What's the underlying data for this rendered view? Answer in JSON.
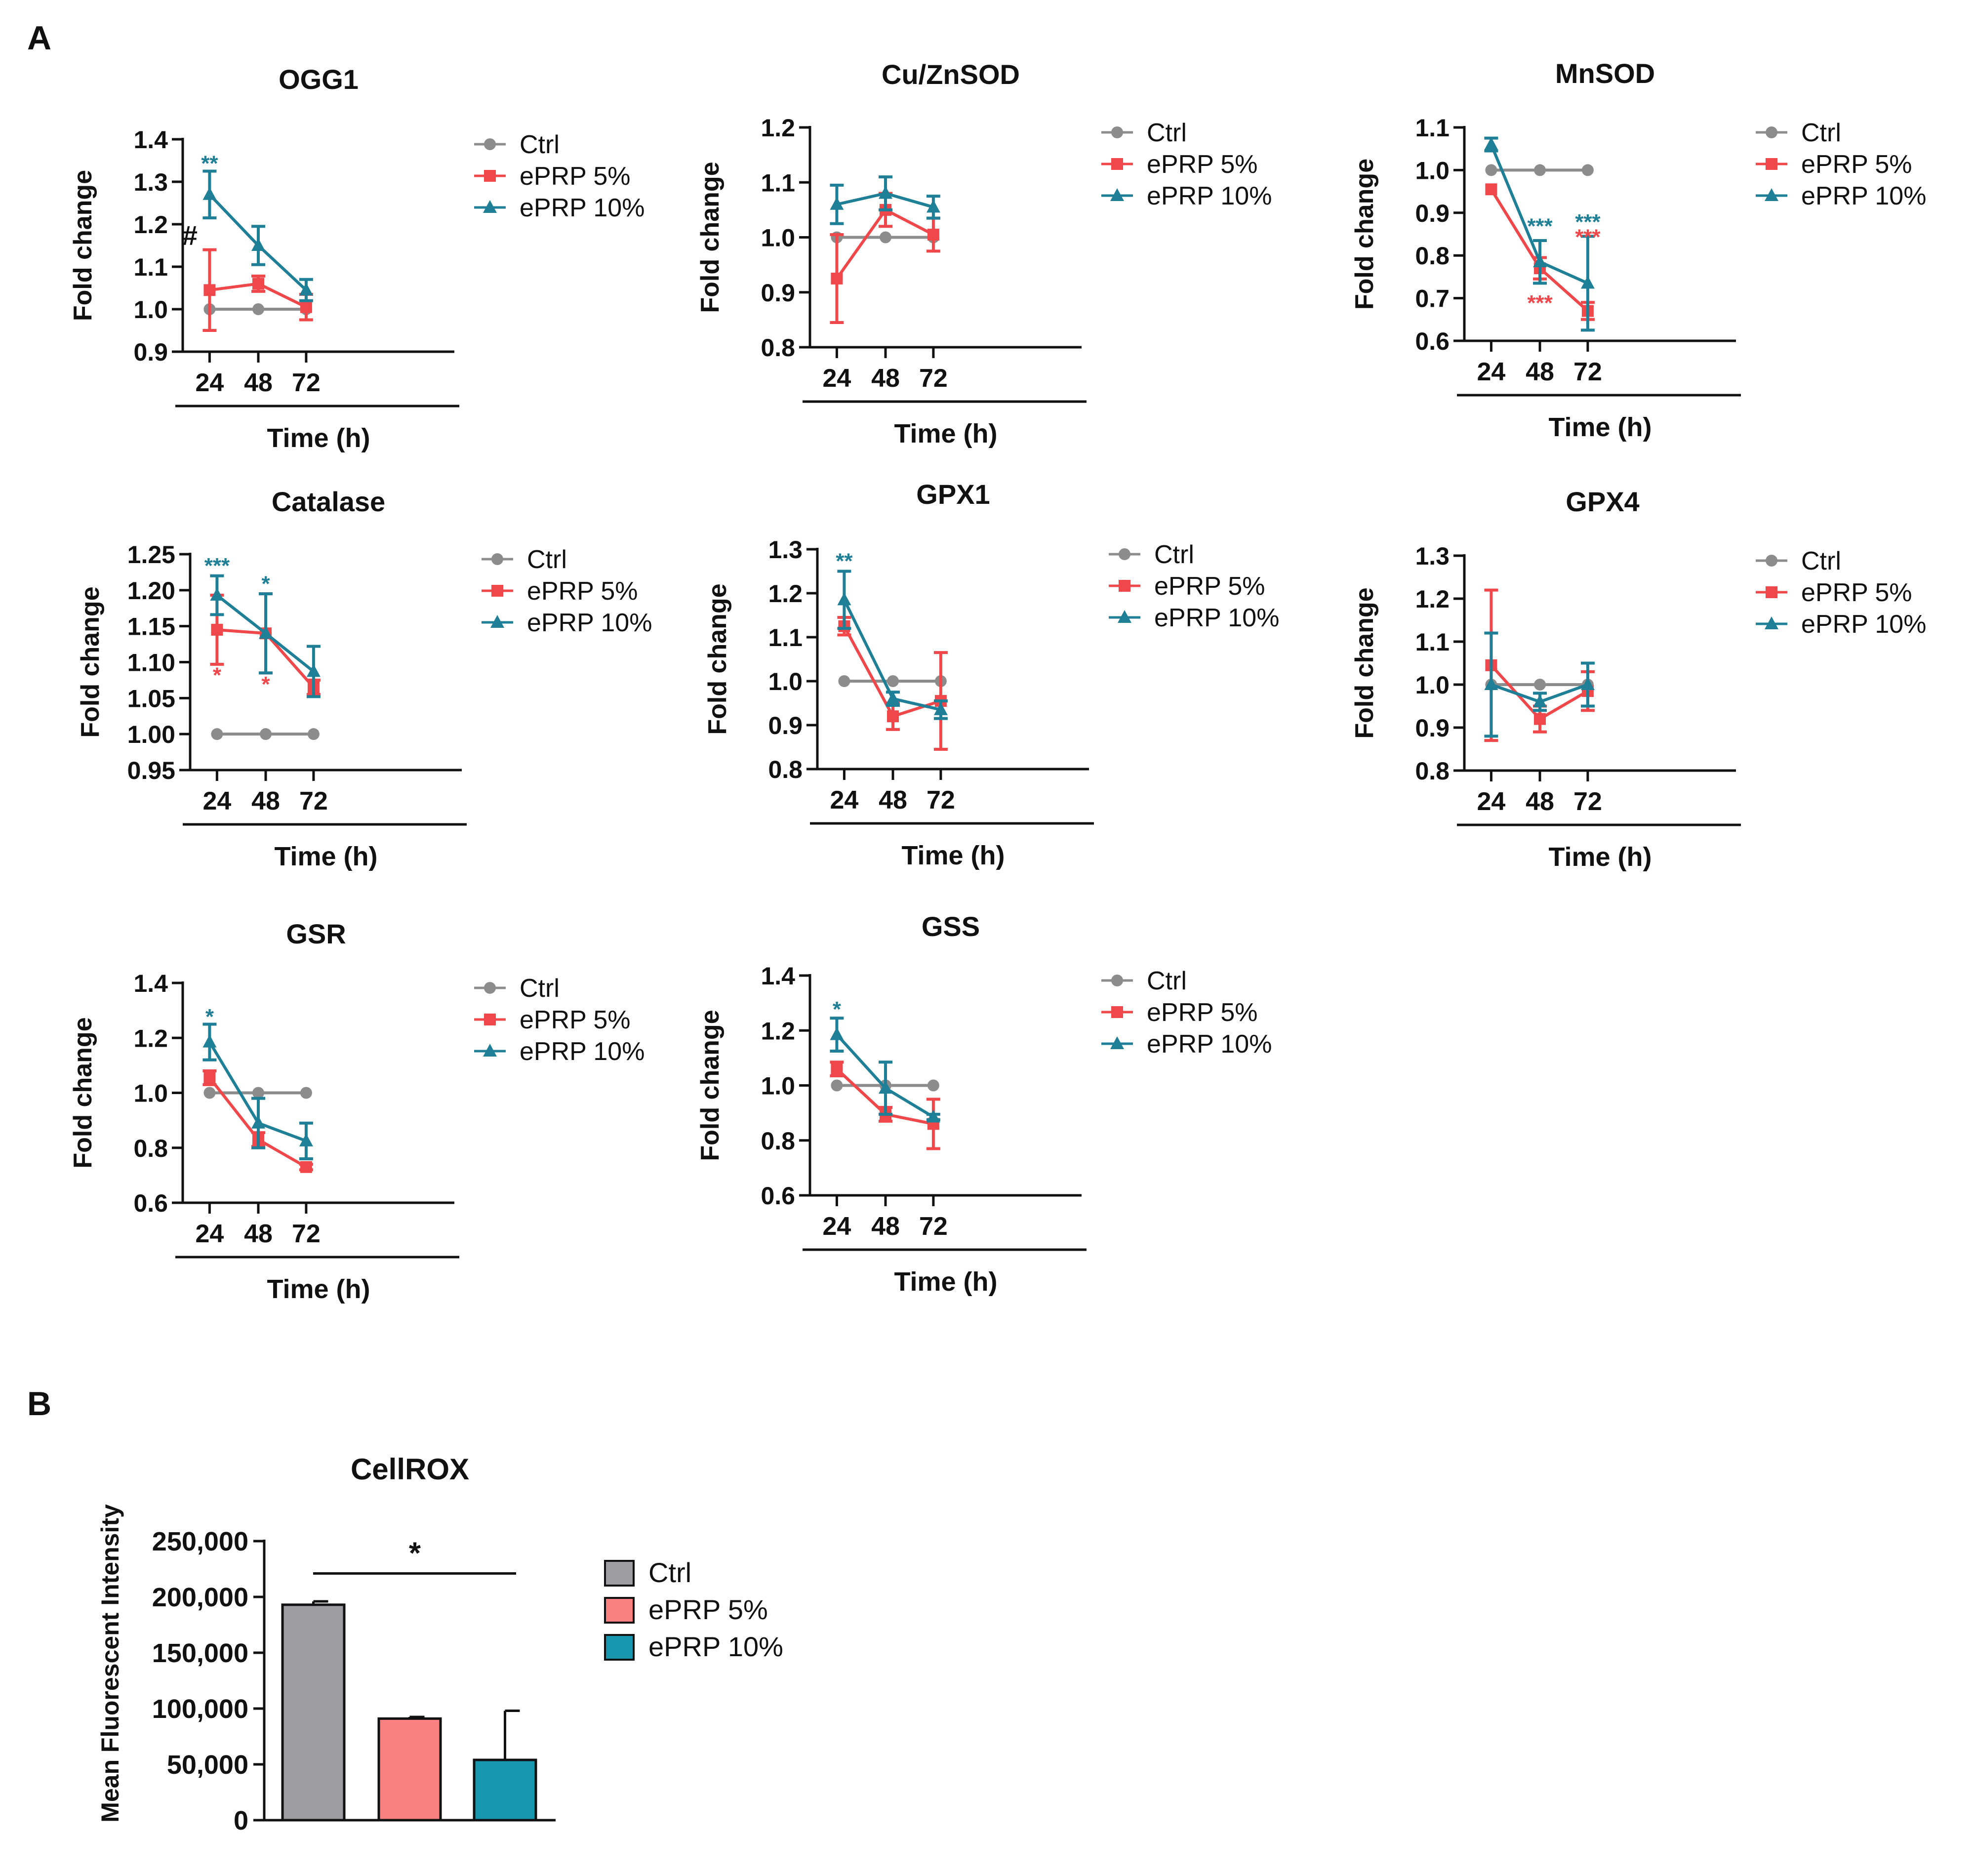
{
  "panels": {
    "a": "A",
    "b": "B"
  },
  "colors": {
    "ctrl": "#8c8c8c",
    "eprp5": "#f0474a",
    "eprp10": "#1e7f96",
    "black": "#111111",
    "bar_ctrl": "#9d9da1",
    "bar_eprp5": "#fa8181",
    "bar_eprp10": "#1797ad"
  },
  "chart_data": [
    {
      "type": "line",
      "title": "OGG1",
      "xlabel": "Time (h)",
      "ylabel": "Fold change",
      "categories": [
        "24",
        "48",
        "72"
      ],
      "ylim": [
        0.9,
        1.4
      ],
      "yticks": [
        0.9,
        1.0,
        1.1,
        1.2,
        1.3,
        1.4
      ],
      "ytick_labels": [
        "0.9",
        "1.0",
        "1.1",
        "1.2",
        "1.3",
        "1.4"
      ],
      "series": [
        {
          "name": "Ctrl",
          "values": [
            1.0,
            1.0,
            1.0
          ],
          "errors": [
            0,
            0,
            0
          ]
        },
        {
          "name": "ePRP 5%",
          "values": [
            1.045,
            1.06,
            1.005
          ],
          "errors": [
            0.095,
            0.018,
            0.03
          ]
        },
        {
          "name": "ePRP 10%",
          "values": [
            1.27,
            1.15,
            1.045
          ],
          "errors": [
            0.055,
            0.045,
            0.025
          ]
        }
      ],
      "annotations": [
        {
          "text": "**",
          "series": 2,
          "x": 0,
          "y": 1.345
        },
        {
          "text": "#",
          "series": -1,
          "x": 0,
          "y": 1.17
        }
      ]
    },
    {
      "type": "line",
      "title": "Cu/ZnSOD",
      "xlabel": "Time (h)",
      "ylabel": "Fold change",
      "categories": [
        "24",
        "48",
        "72"
      ],
      "ylim": [
        0.8,
        1.2
      ],
      "yticks": [
        0.8,
        0.9,
        1.0,
        1.1,
        1.2
      ],
      "ytick_labels": [
        "0.8",
        "0.9",
        "1.0",
        "1.1",
        "1.2"
      ],
      "series": [
        {
          "name": "Ctrl",
          "values": [
            1.0,
            1.0,
            1.0
          ],
          "errors": [
            0,
            0,
            0
          ]
        },
        {
          "name": "ePRP 5%",
          "values": [
            0.925,
            1.05,
            1.005
          ],
          "errors": [
            0.08,
            0.03,
            0.03
          ]
        },
        {
          "name": "ePRP 10%",
          "values": [
            1.06,
            1.08,
            1.055
          ],
          "errors": [
            0.035,
            0.03,
            0.02
          ]
        }
      ],
      "annotations": []
    },
    {
      "type": "line",
      "title": "MnSOD",
      "xlabel": "Time (h)",
      "ylabel": "Fold change",
      "categories": [
        "24",
        "48",
        "72"
      ],
      "ylim": [
        0.6,
        1.1
      ],
      "yticks": [
        0.6,
        0.7,
        0.8,
        0.9,
        1.0,
        1.1
      ],
      "ytick_labels": [
        "0.6",
        "0.7",
        "0.8",
        "0.9",
        "1.0",
        "1.1"
      ],
      "series": [
        {
          "name": "Ctrl",
          "values": [
            1.0,
            1.0,
            1.0
          ],
          "errors": [
            0,
            0,
            0
          ]
        },
        {
          "name": "ePRP 5%",
          "values": [
            0.955,
            0.77,
            0.67
          ],
          "errors": [
            0,
            0.025,
            0.02
          ]
        },
        {
          "name": "ePRP 10%",
          "values": [
            1.06,
            0.785,
            0.735
          ],
          "errors": [
            0.015,
            0.05,
            0.11
          ]
        }
      ],
      "annotations": [
        {
          "text": "***",
          "series": 2,
          "x": 1,
          "y": 0.87
        },
        {
          "text": "***",
          "series": 1,
          "x": 1,
          "y": 0.69
        },
        {
          "text": "***",
          "series": 2,
          "x": 2,
          "y": 0.88
        },
        {
          "text": "***",
          "series": 1,
          "x": 2,
          "y": 0.845
        }
      ]
    },
    {
      "type": "line",
      "title": "Catalase",
      "xlabel": "Time (h)",
      "ylabel": "Fold change",
      "categories": [
        "24",
        "48",
        "72"
      ],
      "ylim": [
        0.95,
        1.25
      ],
      "yticks": [
        0.95,
        1.0,
        1.05,
        1.1,
        1.15,
        1.2,
        1.25
      ],
      "ytick_labels": [
        "0.95",
        "1.00",
        "1.05",
        "1.10",
        "1.15",
        "1.20",
        "1.25"
      ],
      "series": [
        {
          "name": "Ctrl",
          "values": [
            1.0,
            1.0,
            1.0
          ],
          "errors": [
            0,
            0,
            0
          ]
        },
        {
          "name": "ePRP 5%",
          "values": [
            1.145,
            1.14,
            1.065
          ],
          "errors": [
            0.048,
            0.055,
            0.01
          ]
        },
        {
          "name": "ePRP 10%",
          "values": [
            1.193,
            1.14,
            1.087
          ],
          "errors": [
            0.027,
            0.055,
            0.035
          ]
        }
      ],
      "annotations": [
        {
          "text": "***",
          "series": 2,
          "x": 0,
          "y": 1.235
        },
        {
          "text": "*",
          "series": 1,
          "x": 0,
          "y": 1.083
        },
        {
          "text": "*",
          "series": 2,
          "x": 1,
          "y": 1.21
        },
        {
          "text": "*",
          "series": 1,
          "x": 1,
          "y": 1.07
        }
      ]
    },
    {
      "type": "line",
      "title": "GPX1",
      "xlabel": "Time (h)",
      "ylabel": "Fold change",
      "categories": [
        "24",
        "48",
        "72"
      ],
      "ylim": [
        0.8,
        1.3
      ],
      "yticks": [
        0.8,
        0.9,
        1.0,
        1.1,
        1.2,
        1.3
      ],
      "ytick_labels": [
        "0.8",
        "0.9",
        "1.0",
        "1.1",
        "1.2",
        "1.3"
      ],
      "series": [
        {
          "name": "Ctrl",
          "values": [
            1.0,
            1.0,
            1.0
          ],
          "errors": [
            0,
            0,
            0
          ]
        },
        {
          "name": "ePRP 5%",
          "values": [
            1.125,
            0.92,
            0.955
          ],
          "errors": [
            0.02,
            0.03,
            0.11
          ]
        },
        {
          "name": "ePRP 10%",
          "values": [
            1.185,
            0.96,
            0.935
          ],
          "errors": [
            0.065,
            0.015,
            0.02
          ]
        }
      ],
      "annotations": [
        {
          "text": "**",
          "series": 2,
          "x": 0,
          "y": 1.275
        }
      ]
    },
    {
      "type": "line",
      "title": "GPX4",
      "xlabel": "Time (h)",
      "ylabel": "Fold change",
      "categories": [
        "24",
        "48",
        "72"
      ],
      "ylim": [
        0.8,
        1.3
      ],
      "yticks": [
        0.8,
        0.9,
        1.0,
        1.1,
        1.2,
        1.3
      ],
      "ytick_labels": [
        "0.8",
        "0.9",
        "1.0",
        "1.1",
        "1.2",
        "1.3"
      ],
      "series": [
        {
          "name": "Ctrl",
          "values": [
            1.0,
            1.0,
            1.0
          ],
          "errors": [
            0,
            0,
            0
          ]
        },
        {
          "name": "ePRP 5%",
          "values": [
            1.045,
            0.92,
            0.985
          ],
          "errors": [
            0.175,
            0.03,
            0.045
          ]
        },
        {
          "name": "ePRP 10%",
          "values": [
            1.0,
            0.96,
            1.0
          ],
          "errors": [
            0.12,
            0.02,
            0.05
          ]
        }
      ],
      "annotations": []
    },
    {
      "type": "line",
      "title": "GSR",
      "xlabel": "Time (h)",
      "ylabel": "Fold change",
      "categories": [
        "24",
        "48",
        "72"
      ],
      "ylim": [
        0.6,
        1.4
      ],
      "yticks": [
        0.6,
        0.8,
        1.0,
        1.2,
        1.4
      ],
      "ytick_labels": [
        "0.6",
        "0.8",
        "1.0",
        "1.2",
        "1.4"
      ],
      "series": [
        {
          "name": "Ctrl",
          "values": [
            1.0,
            1.0,
            1.0
          ],
          "errors": [
            0,
            0,
            0
          ]
        },
        {
          "name": "ePRP 5%",
          "values": [
            1.055,
            0.83,
            0.73
          ],
          "errors": [
            0.025,
            0.025,
            0.01
          ]
        },
        {
          "name": "ePRP 10%",
          "values": [
            1.185,
            0.89,
            0.825
          ],
          "errors": [
            0.065,
            0.09,
            0.065
          ]
        }
      ],
      "annotations": [
        {
          "text": "*",
          "series": 2,
          "x": 0,
          "y": 1.28
        }
      ]
    },
    {
      "type": "line",
      "title": "GSS",
      "xlabel": "Time (h)",
      "ylabel": "Fold change",
      "categories": [
        "24",
        "48",
        "72"
      ],
      "ylim": [
        0.6,
        1.4
      ],
      "yticks": [
        0.6,
        0.8,
        1.0,
        1.2,
        1.4
      ],
      "ytick_labels": [
        "0.6",
        "0.8",
        "1.0",
        "1.2",
        "1.4"
      ],
      "series": [
        {
          "name": "Ctrl",
          "values": [
            1.0,
            1.0,
            1.0
          ],
          "errors": [
            0,
            0,
            0
          ]
        },
        {
          "name": "ePRP 5%",
          "values": [
            1.06,
            0.895,
            0.86
          ],
          "errors": [
            0.025,
            0.025,
            0.09
          ]
        },
        {
          "name": "ePRP 10%",
          "values": [
            1.185,
            0.99,
            0.885
          ],
          "errors": [
            0.06,
            0.095,
            0.01
          ]
        }
      ],
      "annotations": [
        {
          "text": "*",
          "series": 2,
          "x": 0,
          "y": 1.28
        }
      ]
    },
    {
      "type": "bar",
      "title": "CellROX",
      "ylabel": "Mean Fluorescent Intensity",
      "categories": [
        "Ctrl",
        "ePRP 5%",
        "ePRP 10%"
      ],
      "values": [
        193000,
        91000,
        54000
      ],
      "errors": [
        3000,
        1500,
        44000
      ],
      "ylim": [
        0,
        250000
      ],
      "yticks": [
        0,
        50000,
        100000,
        150000,
        200000,
        250000
      ],
      "ytick_labels": [
        "0",
        "50,000",
        "100,000",
        "150,000",
        "200,000",
        "250,000"
      ],
      "significance": {
        "text": "*",
        "from": 0,
        "to": 2,
        "y": 221000
      }
    }
  ]
}
